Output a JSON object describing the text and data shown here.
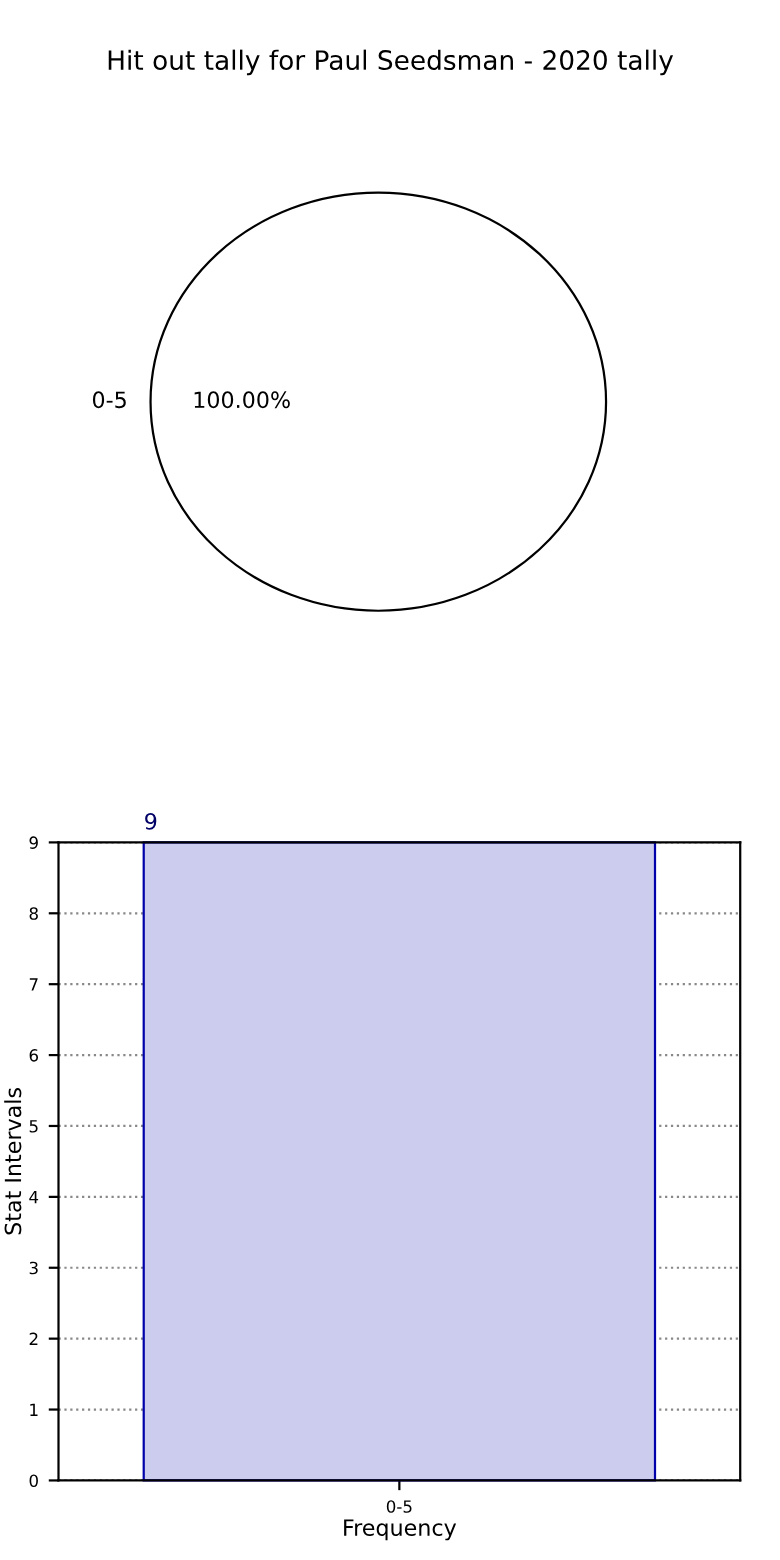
{
  "chart_data": [
    {
      "type": "pie",
      "title": "Hit out tally for Paul Seedsman - 2020 tally",
      "categories": [
        "0-5"
      ],
      "values": [
        100
      ],
      "colors": [
        "#ffffff"
      ],
      "value_labels": [
        "100.00%"
      ]
    },
    {
      "type": "bar",
      "categories": [
        "0-5"
      ],
      "values": [
        9
      ],
      "color": "#ccccee",
      "xlabel": "Frequency",
      "ylabel": "Stat Intervals",
      "ylim": [
        0,
        9
      ],
      "yticks": [
        0,
        1,
        2,
        3,
        4,
        5,
        6,
        7,
        8,
        9
      ],
      "grid": true,
      "data_labels": true
    }
  ]
}
